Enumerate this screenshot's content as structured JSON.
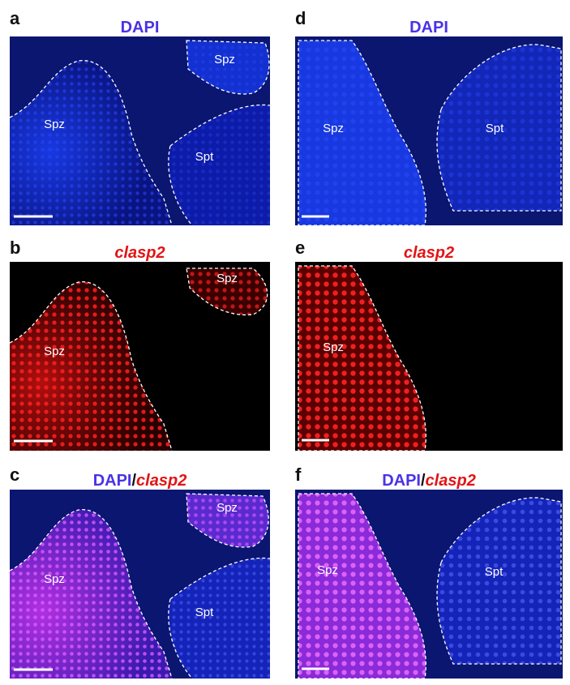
{
  "figure": {
    "panels": [
      {
        "letter": "a",
        "stain": "DAPI",
        "regions": [
          "Spz",
          "Spz",
          "Spt"
        ]
      },
      {
        "letter": "b",
        "stain": "clasp2",
        "regions": [
          "Spz",
          "Spz"
        ]
      },
      {
        "letter": "c",
        "stain_parts": [
          "DAPI",
          "/",
          "clasp2"
        ],
        "regions": [
          "Spz",
          "Spz",
          "Spt"
        ]
      },
      {
        "letter": "d",
        "stain": "DAPI",
        "regions": [
          "Spz",
          "Spt"
        ]
      },
      {
        "letter": "e",
        "stain": "clasp2",
        "regions": [
          "Spz"
        ]
      },
      {
        "letter": "f",
        "stain_parts": [
          "DAPI",
          "/",
          "clasp2"
        ],
        "regions": [
          "Spz",
          "Spt"
        ]
      }
    ],
    "colors": {
      "dapi_blue": "#1428c8",
      "clasp2_red": "#e31414",
      "merge_magenta": "#c43cff",
      "background_black": "#000000"
    }
  }
}
